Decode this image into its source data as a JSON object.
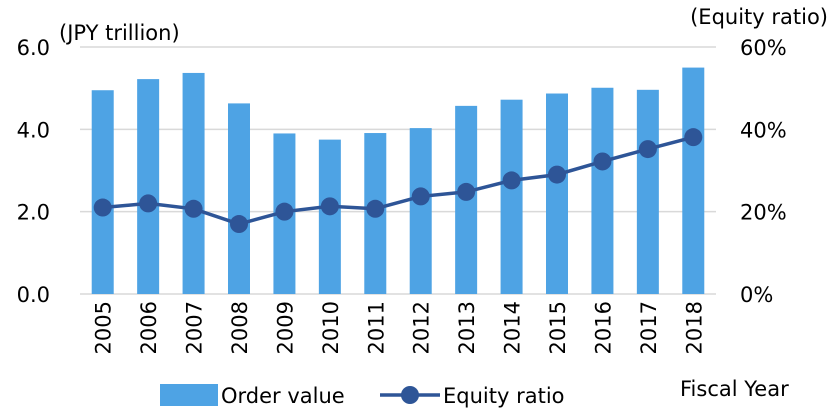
{
  "chart_data": {
    "type": "bar",
    "categories": [
      "2005",
      "2006",
      "2007",
      "2008",
      "2009",
      "2010",
      "2011",
      "2012",
      "2013",
      "2014",
      "2015",
      "2016",
      "2017",
      "2018"
    ],
    "series": [
      {
        "name": "Order value",
        "type": "bar",
        "axis": "left",
        "color": "#4ea3e4",
        "values": [
          4.95,
          5.22,
          5.37,
          4.63,
          3.9,
          3.75,
          3.91,
          4.03,
          4.57,
          4.72,
          4.87,
          5.01,
          4.96,
          5.5
        ]
      },
      {
        "name": "Equity ratio",
        "type": "line",
        "axis": "right",
        "color": "#2e5597",
        "marker": "circle",
        "values": [
          21,
          22,
          20.7,
          17,
          20,
          21.3,
          20.7,
          23.7,
          24.8,
          27.6,
          29,
          32.2,
          35.2,
          38.1
        ]
      }
    ],
    "y_left": {
      "label": "(JPY trillion)",
      "ylim": [
        0,
        6
      ],
      "ticks": [
        "0.0",
        "2.0",
        "4.0",
        "6.0"
      ]
    },
    "y_right": {
      "label": "(Equity ratio)",
      "ylim": [
        0,
        60
      ],
      "ticks": [
        "0%",
        "20%",
        "40%",
        "60%"
      ]
    },
    "xlabel": "Fiscal Year",
    "grid": true,
    "legend_position": "bottom"
  }
}
